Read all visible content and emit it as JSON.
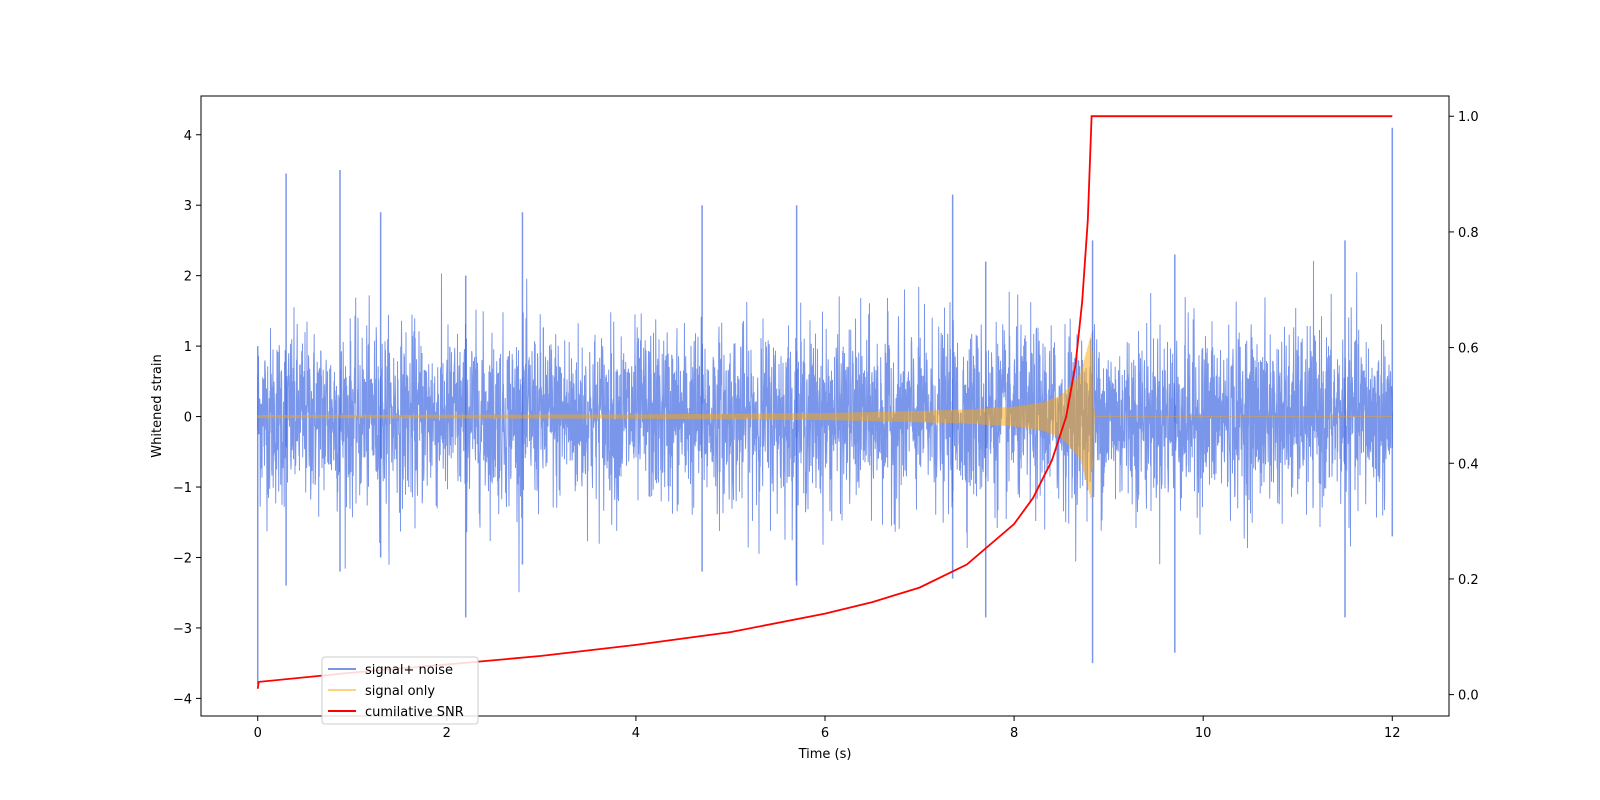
{
  "chart_data": {
    "type": "line",
    "title": "",
    "xlabel": "Time (s)",
    "ylabel": "Whitened strain",
    "ylabel_right": "",
    "xlim": [
      -0.6,
      12.6
    ],
    "ylim": [
      -4.25,
      4.55
    ],
    "ylim_right": [
      -0.037,
      1.035
    ],
    "x_ticks": [
      0,
      2,
      4,
      6,
      8,
      10,
      12
    ],
    "y_ticks": [
      -4,
      -3,
      -2,
      -1,
      0,
      1,
      2,
      3,
      4
    ],
    "y_ticks_right": [
      0.0,
      0.2,
      0.4,
      0.6,
      0.8,
      1.0
    ],
    "grid": false,
    "legend_position": "lower-left",
    "series": [
      {
        "name": "signal+ noise",
        "axis": "left",
        "color": "#4169E1",
        "style": "dense noise, roughly ±1.5 with spikes to ±3.5",
        "envelope_samples": [
          {
            "x": 0.0,
            "max": 1.0,
            "min": -3.8
          },
          {
            "x": 0.3,
            "max": 3.45,
            "min": -2.4
          },
          {
            "x": 0.87,
            "max": 3.5,
            "min": -2.2
          },
          {
            "x": 1.3,
            "max": 2.9,
            "min": -2.0
          },
          {
            "x": 2.2,
            "max": 2.0,
            "min": -2.85
          },
          {
            "x": 2.8,
            "max": 2.9,
            "min": -2.1
          },
          {
            "x": 4.7,
            "max": 3.0,
            "min": -2.2
          },
          {
            "x": 5.7,
            "max": 3.0,
            "min": -2.4
          },
          {
            "x": 7.35,
            "max": 3.15,
            "min": -2.3
          },
          {
            "x": 7.7,
            "max": 2.2,
            "min": -2.85
          },
          {
            "x": 8.83,
            "max": 2.5,
            "min": -3.5
          },
          {
            "x": 9.7,
            "max": 2.3,
            "min": -3.35
          },
          {
            "x": 11.5,
            "max": 2.5,
            "min": -2.85
          },
          {
            "x": 12.0,
            "max": 4.1,
            "min": -1.7
          }
        ]
      },
      {
        "name": "signal only",
        "axis": "left",
        "color": "#FFA500",
        "style": "chirp with growing amplitude, ends at merger",
        "amplitude_samples": [
          {
            "x": 0.0,
            "amp": 0.02
          },
          {
            "x": 4.0,
            "amp": 0.03
          },
          {
            "x": 6.0,
            "amp": 0.05
          },
          {
            "x": 7.0,
            "amp": 0.08
          },
          {
            "x": 7.5,
            "amp": 0.1
          },
          {
            "x": 8.0,
            "amp": 0.14
          },
          {
            "x": 8.3,
            "amp": 0.2
          },
          {
            "x": 8.5,
            "amp": 0.3
          },
          {
            "x": 8.7,
            "amp": 0.6
          },
          {
            "x": 8.82,
            "amp": 1.2
          },
          {
            "x": 8.85,
            "amp": 0.0
          },
          {
            "x": 12.0,
            "amp": 0.0
          }
        ]
      },
      {
        "name": "cumilative SNR",
        "axis": "right",
        "color": "#FF0000",
        "points": [
          {
            "x": 0.0,
            "y": 0.01
          },
          {
            "x": 0.01,
            "y": 0.022
          },
          {
            "x": 1.0,
            "y": 0.038
          },
          {
            "x": 2.0,
            "y": 0.052
          },
          {
            "x": 3.0,
            "y": 0.067
          },
          {
            "x": 4.0,
            "y": 0.086
          },
          {
            "x": 5.0,
            "y": 0.108
          },
          {
            "x": 6.0,
            "y": 0.14
          },
          {
            "x": 6.5,
            "y": 0.16
          },
          {
            "x": 7.0,
            "y": 0.185
          },
          {
            "x": 7.5,
            "y": 0.225
          },
          {
            "x": 8.0,
            "y": 0.295
          },
          {
            "x": 8.2,
            "y": 0.34
          },
          {
            "x": 8.4,
            "y": 0.405
          },
          {
            "x": 8.55,
            "y": 0.48
          },
          {
            "x": 8.65,
            "y": 0.57
          },
          {
            "x": 8.72,
            "y": 0.68
          },
          {
            "x": 8.78,
            "y": 0.82
          },
          {
            "x": 8.82,
            "y": 1.0
          },
          {
            "x": 12.0,
            "y": 1.0
          }
        ]
      }
    ]
  }
}
